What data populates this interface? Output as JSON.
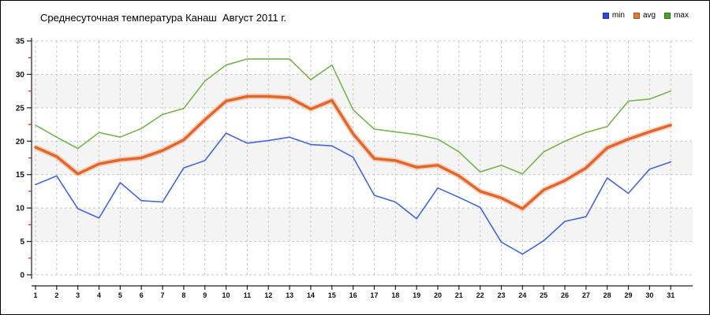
{
  "title": "Среднесуточная температура Канаш  Август 2011 г.",
  "chart_data": {
    "type": "line",
    "title": "Среднесуточная температура Канаш  Август 2011 г.",
    "xlabel": "",
    "ylabel": "",
    "x_ticks": [
      1,
      2,
      3,
      4,
      5,
      6,
      7,
      8,
      9,
      10,
      11,
      12,
      13,
      14,
      15,
      16,
      17,
      18,
      19,
      20,
      21,
      22,
      23,
      24,
      25,
      26,
      27,
      28,
      29,
      30,
      31
    ],
    "y_ticks": [
      0,
      5,
      10,
      15,
      20,
      25,
      30,
      35
    ],
    "minor_y_ticks": [
      2.5,
      7.5,
      12.5,
      17.5,
      22.5,
      27.5,
      32.5
    ],
    "ylim": [
      0,
      35
    ],
    "grid": "dashed",
    "legend_position": "top-right",
    "series": [
      {
        "name": "min",
        "color": "#4466d8",
        "legend_color": "#2a4cdb",
        "width": 1.6,
        "values": [
          13.5,
          14.8,
          9.9,
          8.5,
          13.8,
          11.1,
          10.9,
          16.0,
          17.1,
          21.2,
          19.7,
          20.1,
          20.6,
          19.5,
          19.3,
          17.6,
          11.9,
          10.9,
          8.4,
          13.0,
          11.6,
          10.1,
          4.9,
          3.1,
          5.1,
          8.0,
          8.7,
          14.5,
          12.2,
          15.8,
          16.9
        ]
      },
      {
        "name": "avg",
        "color": "#e2662a",
        "halo": "#f2a987",
        "legend_color": "#e8772e",
        "width": 3.4,
        "values": [
          19.1,
          17.7,
          15.1,
          16.6,
          17.2,
          17.5,
          18.6,
          20.2,
          23.2,
          26.0,
          26.7,
          26.7,
          26.5,
          24.8,
          26.1,
          21.1,
          17.4,
          17.1,
          16.1,
          16.4,
          14.8,
          12.5,
          11.5,
          9.9,
          12.7,
          14.1,
          16.0,
          19.0,
          20.3,
          21.4,
          22.4
        ]
      },
      {
        "name": "max",
        "color": "#77b34f",
        "legend_color": "#47a32a",
        "width": 1.6,
        "values": [
          22.4,
          20.6,
          18.9,
          21.3,
          20.6,
          21.9,
          24.0,
          24.9,
          29.0,
          31.4,
          32.3,
          32.3,
          32.3,
          29.2,
          31.4,
          24.7,
          21.8,
          21.4,
          21.0,
          20.3,
          18.4,
          15.4,
          16.4,
          15.1,
          18.4,
          20.0,
          21.3,
          22.2,
          26.0,
          26.3,
          27.5
        ]
      }
    ],
    "colors": {
      "band": "#f4f4f4",
      "grid": "#c9c9c9",
      "axis": "#222222",
      "minor_tick": "#cc2222",
      "tick_label": "#111111"
    }
  }
}
